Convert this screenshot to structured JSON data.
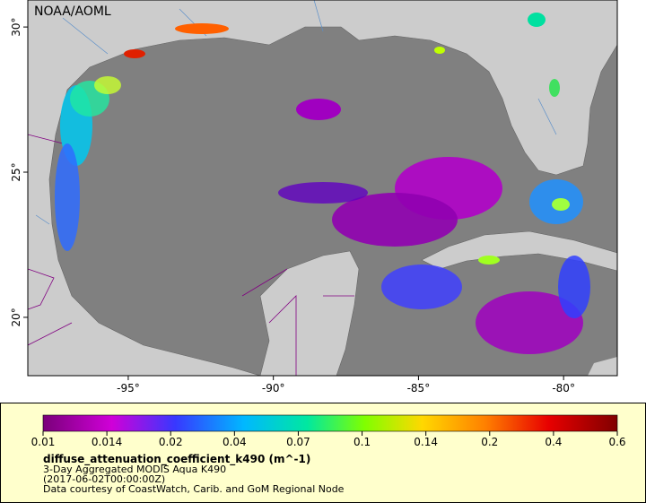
{
  "map": {
    "watermark": "NOAA/AOML",
    "xlim": [
      -98.46,
      -78.15
    ],
    "ylim": [
      17.99,
      30.93
    ],
    "xticks": [
      {
        "value": -95,
        "label": "-95°"
      },
      {
        "value": -90,
        "label": "-90°"
      },
      {
        "value": -85,
        "label": "-85°"
      },
      {
        "value": -80,
        "label": "-80°"
      }
    ],
    "yticks": [
      {
        "value": 20,
        "label": "20°"
      },
      {
        "value": 25,
        "label": "25°"
      },
      {
        "value": 30,
        "label": "30°"
      }
    ]
  },
  "legend": {
    "colorbar_ticks": [
      0.01,
      0.014,
      0.02,
      0.04,
      0.07,
      0.1,
      0.14,
      0.2,
      0.4,
      0.6
    ],
    "variable": "diffuse_attenuation_coefficient_k490 (m^-1)",
    "description": "3-Day Aggregated MODIS Aqua K490",
    "time": "(2017-06-02T00:00:00Z)",
    "credit": "Data courtesy of CoastWatch, Carib. and GoM Regional Node"
  }
}
